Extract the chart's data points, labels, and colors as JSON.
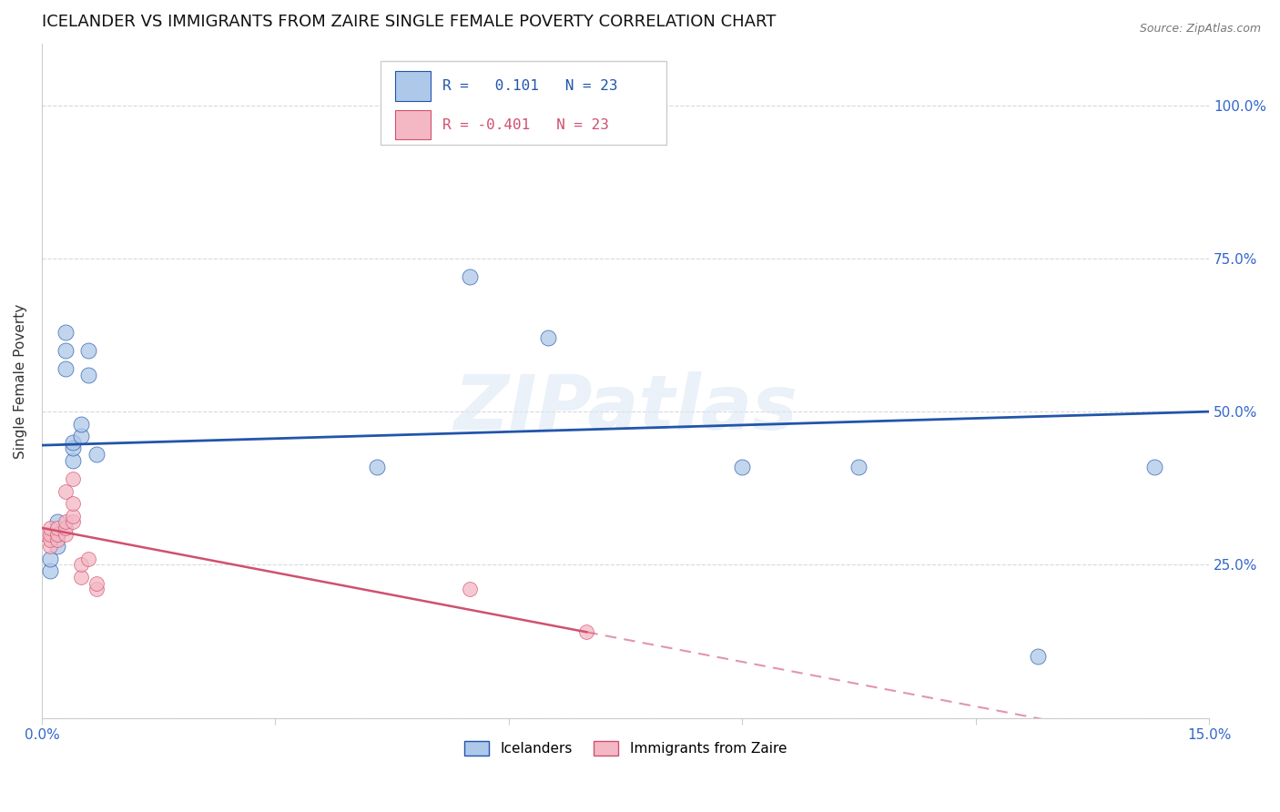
{
  "title": "ICELANDER VS IMMIGRANTS FROM ZAIRE SINGLE FEMALE POVERTY CORRELATION CHART",
  "source": "Source: ZipAtlas.com",
  "ylabel": "Single Female Poverty",
  "xlim": [
    0.0,
    0.15
  ],
  "ylim": [
    0.0,
    1.1
  ],
  "yticks": [
    0.0,
    0.25,
    0.5,
    0.75,
    1.0
  ],
  "xticks": [
    0.0,
    0.03,
    0.06,
    0.09,
    0.12,
    0.15
  ],
  "xtick_labels": [
    "0.0%",
    "",
    "",
    "",
    "",
    "15.0%"
  ],
  "ytick_labels_right": [
    "",
    "25.0%",
    "50.0%",
    "75.0%",
    "100.0%"
  ],
  "blue_color": "#adc8e8",
  "blue_line_color": "#2255aa",
  "pink_color": "#f4b8c4",
  "pink_line_color": "#d05070",
  "watermark": "ZIPatlas",
  "legend_R_blue": "R =   0.101",
  "legend_N_blue": "N = 23",
  "legend_R_pink": "R = -0.401",
  "legend_N_pink": "N = 23",
  "legend_label_blue": "Icelanders",
  "legend_label_pink": "Immigrants from Zaire",
  "blue_x": [
    0.001,
    0.001,
    0.002,
    0.002,
    0.002,
    0.003,
    0.003,
    0.003,
    0.004,
    0.004,
    0.004,
    0.005,
    0.005,
    0.006,
    0.006,
    0.007,
    0.043,
    0.055,
    0.065,
    0.09,
    0.105,
    0.128,
    0.143
  ],
  "blue_y": [
    0.24,
    0.26,
    0.28,
    0.3,
    0.32,
    0.57,
    0.6,
    0.63,
    0.42,
    0.44,
    0.45,
    0.46,
    0.48,
    0.56,
    0.6,
    0.43,
    0.41,
    0.72,
    0.62,
    0.41,
    0.41,
    0.1,
    0.41
  ],
  "pink_x": [
    0.0005,
    0.001,
    0.001,
    0.001,
    0.001,
    0.002,
    0.002,
    0.002,
    0.003,
    0.003,
    0.003,
    0.003,
    0.004,
    0.004,
    0.004,
    0.004,
    0.005,
    0.005,
    0.006,
    0.007,
    0.007,
    0.055,
    0.07
  ],
  "pink_y": [
    0.3,
    0.28,
    0.29,
    0.3,
    0.31,
    0.29,
    0.3,
    0.31,
    0.3,
    0.31,
    0.32,
    0.37,
    0.32,
    0.33,
    0.35,
    0.39,
    0.23,
    0.25,
    0.26,
    0.21,
    0.22,
    0.21,
    0.14
  ],
  "blue_scatter_size": 150,
  "pink_scatter_size": 130,
  "title_fontsize": 13,
  "axis_label_fontsize": 11,
  "tick_fontsize": 11,
  "background_color": "#ffffff",
  "grid_color": "#d8d8e0",
  "right_ytick_color": "#3366cc",
  "xtick_color": "#3366cc"
}
